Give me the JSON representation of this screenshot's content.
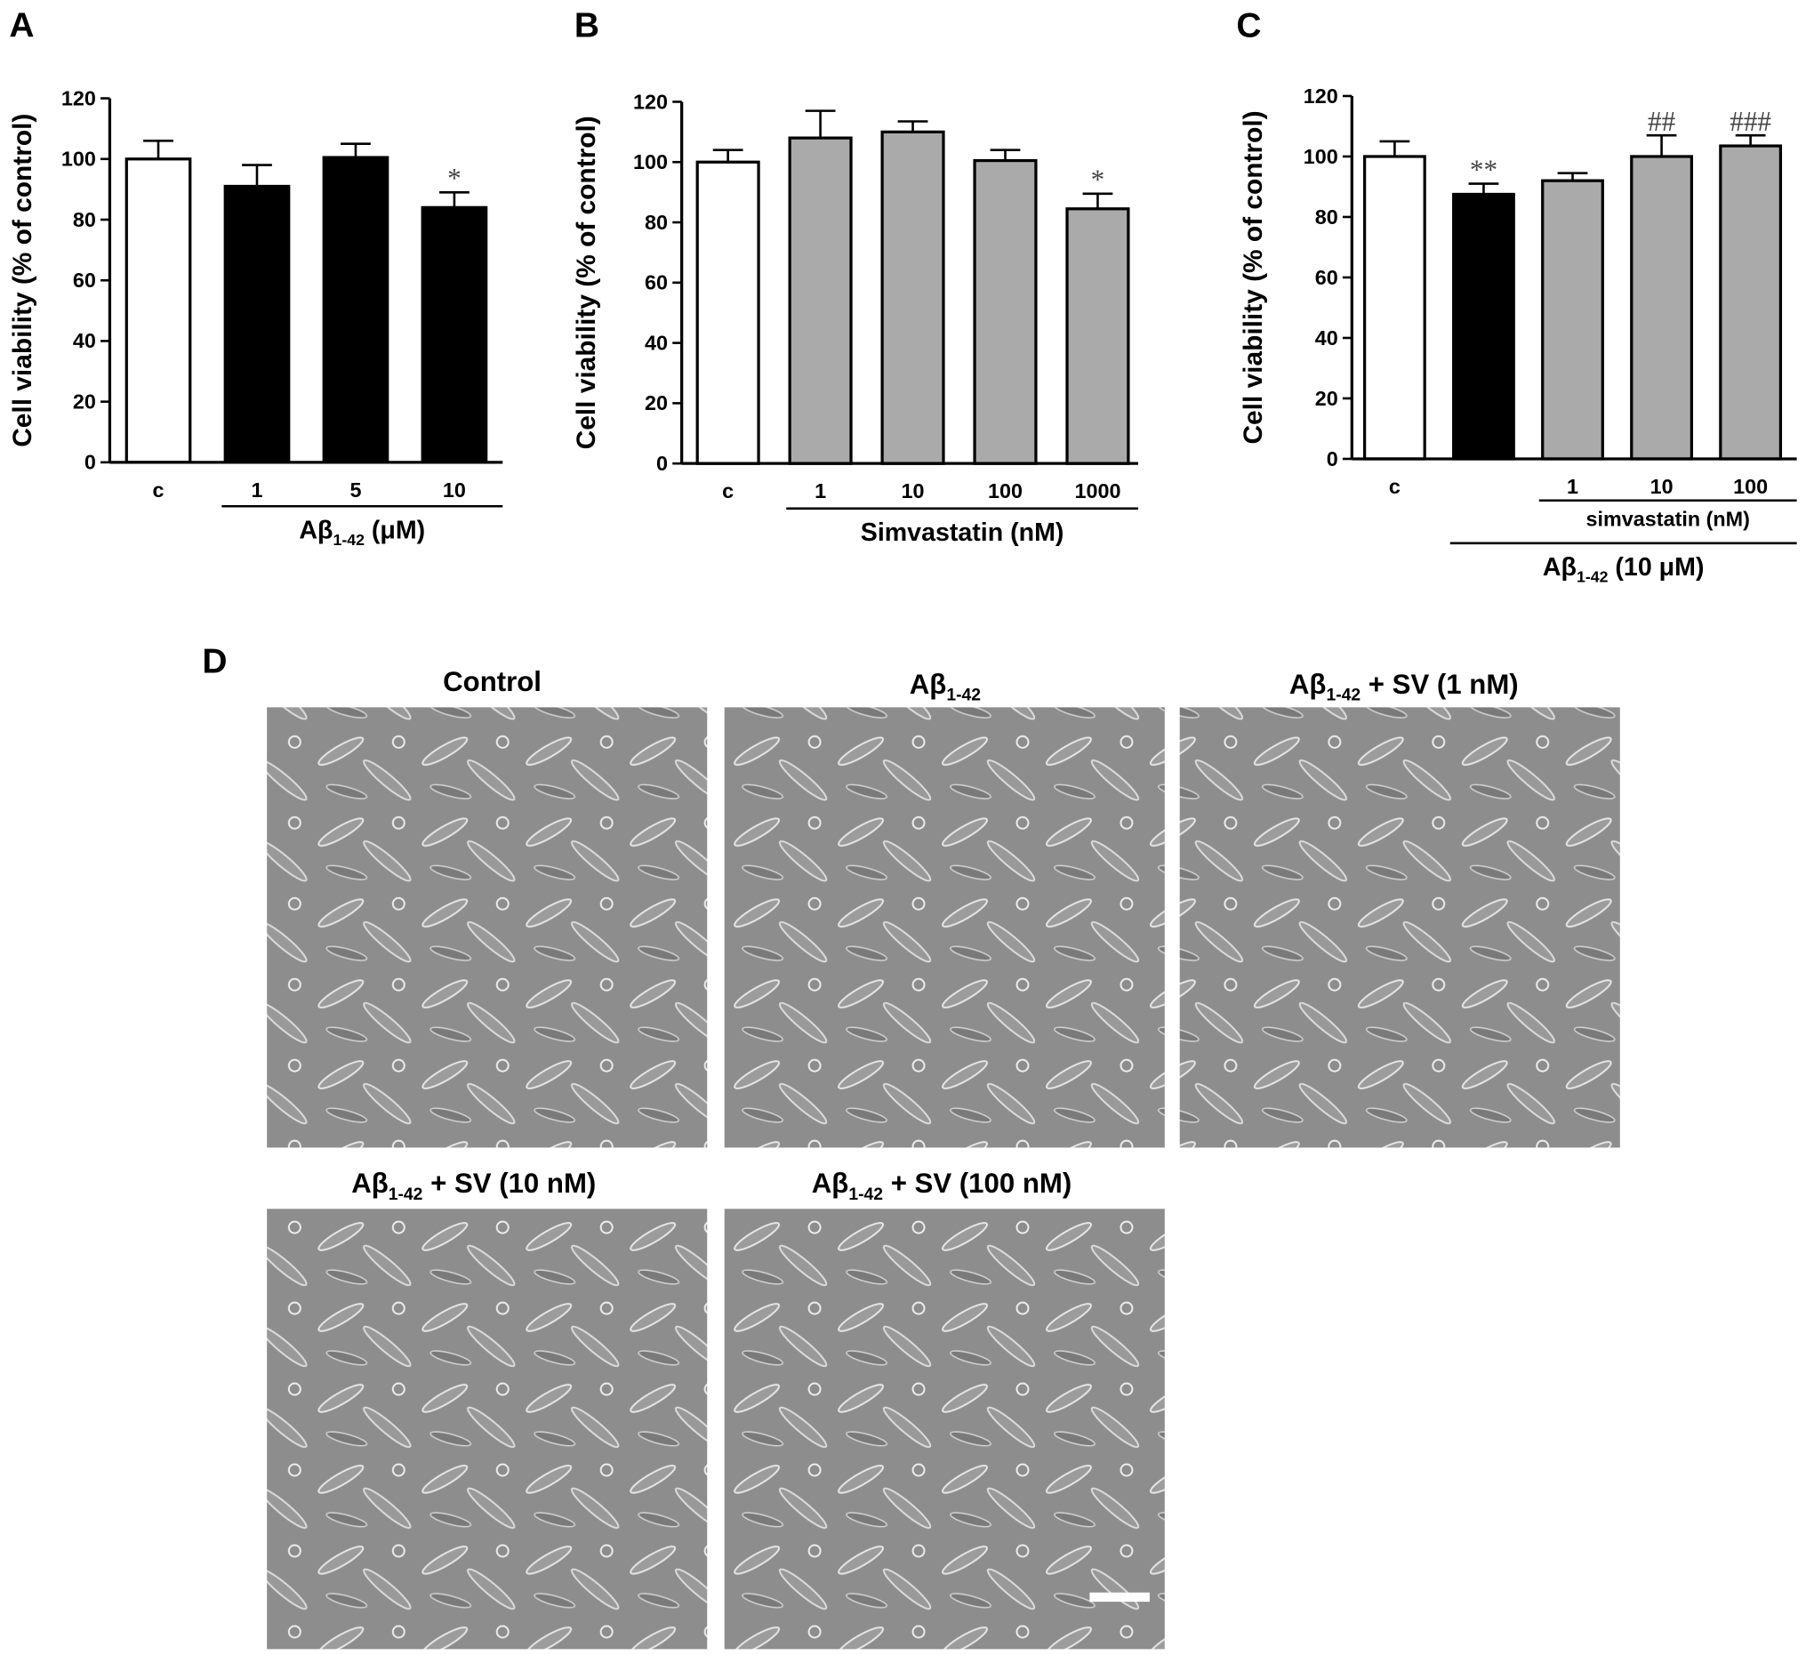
{
  "chart_data": [
    {
      "type": "bar",
      "panel": "A",
      "y_label": "Cell viability (% of control)",
      "categories": [
        "c",
        "1",
        "5",
        "10"
      ],
      "values": [
        100,
        91,
        100.5,
        84
      ],
      "errors": [
        6,
        7,
        4.5,
        5
      ],
      "colors": [
        "#ffffff",
        "#000000",
        "#000000",
        "#000000"
      ],
      "annotations": [
        null,
        null,
        null,
        "*"
      ],
      "groups": [
        [
          "Aβ",
          "1-42",
          " (μM)"
        ]
      ],
      "ylim": [
        0,
        120
      ],
      "yticks": [
        0,
        20,
        40,
        60,
        80,
        100,
        120
      ]
    },
    {
      "type": "bar",
      "panel": "B",
      "y_label": "Cell viability (% of control)",
      "categories": [
        "c",
        "1",
        "10",
        "100",
        "1000"
      ],
      "values": [
        100,
        108,
        110,
        100.5,
        84.5
      ],
      "errors": [
        4,
        9,
        3.5,
        3.5,
        5
      ],
      "colors": [
        "#ffffff",
        "#aaaaaa",
        "#aaaaaa",
        "#aaaaaa",
        "#aaaaaa"
      ],
      "annotations": [
        null,
        null,
        null,
        null,
        "*"
      ],
      "groups": [
        [
          "Simvastatin (nM)"
        ]
      ],
      "ylim": [
        0,
        120
      ],
      "yticks": [
        0,
        20,
        40,
        60,
        80,
        100,
        120
      ]
    },
    {
      "type": "bar",
      "panel": "C",
      "y_label": "Cell viability (% of control)",
      "categories": [
        "c",
        null,
        "1",
        "10",
        "100"
      ],
      "values": [
        100,
        87.5,
        92,
        100,
        103.5
      ],
      "errors": [
        5,
        3.5,
        2.5,
        7,
        3.5
      ],
      "colors": [
        "#ffffff",
        "#000000",
        "#aaaaaa",
        "#aaaaaa",
        "#aaaaaa"
      ],
      "annotations": [
        null,
        "**",
        null,
        "##",
        "###"
      ],
      "groups": [
        [
          "simvastatin (nM)"
        ],
        [
          "Aβ",
          "1-42",
          " (10 μM)"
        ]
      ],
      "ylim": [
        0,
        120
      ],
      "yticks": [
        0,
        20,
        40,
        60,
        80,
        100,
        120
      ]
    }
  ],
  "figure_d": {
    "panel": "D",
    "images": [
      [
        "Control"
      ],
      [
        "Aβ",
        "1-42"
      ],
      [
        "Aβ",
        "1-42",
        " + SV (1 nM)"
      ],
      [
        "Aβ",
        "1-42",
        " + SV (10 nM)"
      ],
      [
        "Aβ",
        "1-42",
        " + SV (100 nM)"
      ]
    ]
  }
}
